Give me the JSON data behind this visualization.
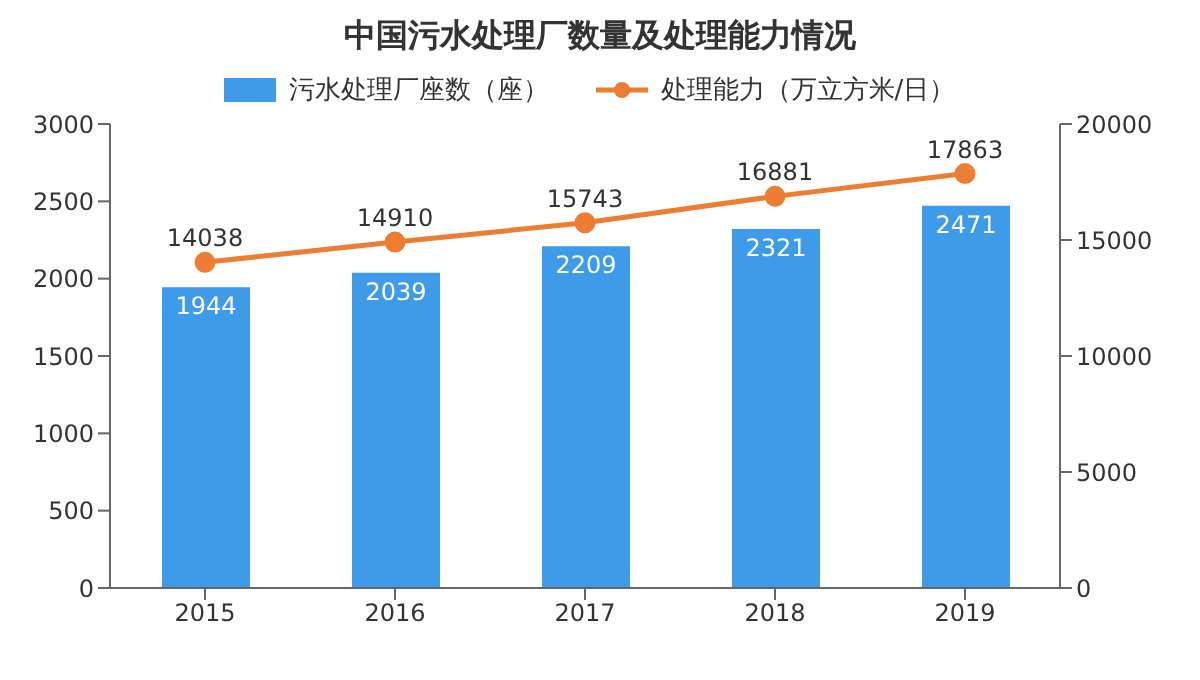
{
  "chart_data": {
    "type": "bar",
    "title": "中国污水处理厂数量及处理能力情况",
    "categories": [
      "2015",
      "2016",
      "2017",
      "2018",
      "2019"
    ],
    "series": [
      {
        "name": "污水处理厂座数（座）",
        "color": "#3d9be9",
        "values": [
          1944,
          2039,
          2209,
          2321,
          2471
        ]
      },
      {
        "name": "处理能力（万立方米/日）",
        "type": "line",
        "axis": "y2",
        "color": "#ed7d31",
        "values": [
          14038,
          14910,
          15743,
          16881,
          17863
        ]
      }
    ],
    "ylim": [
      0,
      3000
    ],
    "yticks": [
      0,
      500,
      1000,
      1500,
      2000,
      2500,
      3000
    ],
    "y2lim": [
      0,
      20000
    ],
    "y2ticks": [
      0,
      5000,
      10000,
      15000,
      20000
    ],
    "legend": "top",
    "grid": false,
    "data_labels": true,
    "marker": "circle"
  }
}
